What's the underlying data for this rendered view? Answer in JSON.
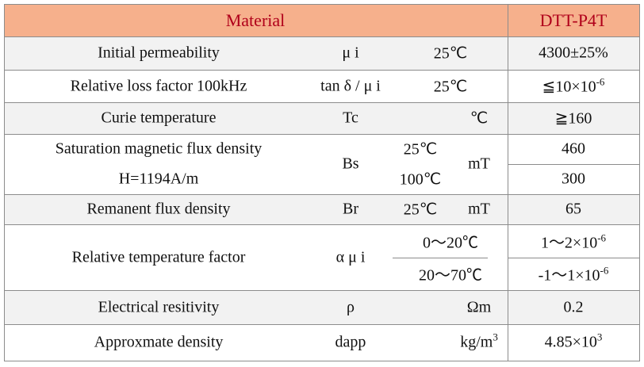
{
  "header": {
    "material": "Material",
    "grade": "DTT-P4T"
  },
  "rows": [
    {
      "property": [
        "Initial permeability"
      ],
      "symbol": "μ i",
      "conditions": [
        "25℃"
      ],
      "values": [
        {
          "text": "4300±25%"
        }
      ]
    },
    {
      "property": [
        "Relative loss factor 100kHz"
      ],
      "symbol": "tan δ / μ i",
      "conditions": [
        "25℃"
      ],
      "values": [
        {
          "text": "≦10×10",
          "sup": "-6"
        }
      ]
    },
    {
      "property": [
        "Curie temperature"
      ],
      "symbol": "Tc",
      "unit": "℃",
      "values": [
        {
          "text": "≧160"
        }
      ]
    },
    {
      "property": [
        "Saturation magnetic flux density",
        "H=1194A/m"
      ],
      "symbol": "Bs",
      "conditions": [
        "25℃",
        "100℃"
      ],
      "unit": "mT",
      "values": [
        {
          "text": "460"
        },
        {
          "text": "300"
        }
      ]
    },
    {
      "property": [
        "Remanent flux density"
      ],
      "symbol": "Br",
      "conditions": [
        "25℃"
      ],
      "unit": "mT",
      "values": [
        {
          "text": "65"
        }
      ]
    },
    {
      "property": [
        "Relative temperature factor"
      ],
      "symbol": "α μ i",
      "conditions": [
        "0～20℃",
        "20～70℃"
      ],
      "values": [
        {
          "text": "1～2×10",
          "sup": "-6"
        },
        {
          "text": "-1～1×10",
          "sup": "-6"
        }
      ]
    },
    {
      "property": [
        "Electrical resitivity"
      ],
      "symbol": "ρ",
      "unit": "Ωm",
      "values": [
        {
          "text": "0.2"
        }
      ]
    },
    {
      "property": [
        "Approxmate density"
      ],
      "symbol": "dapp",
      "unit": "kg/m",
      "unit_sup": "3",
      "values": [
        {
          "text": "4.85×10",
          "sup": "3"
        }
      ]
    }
  ]
}
